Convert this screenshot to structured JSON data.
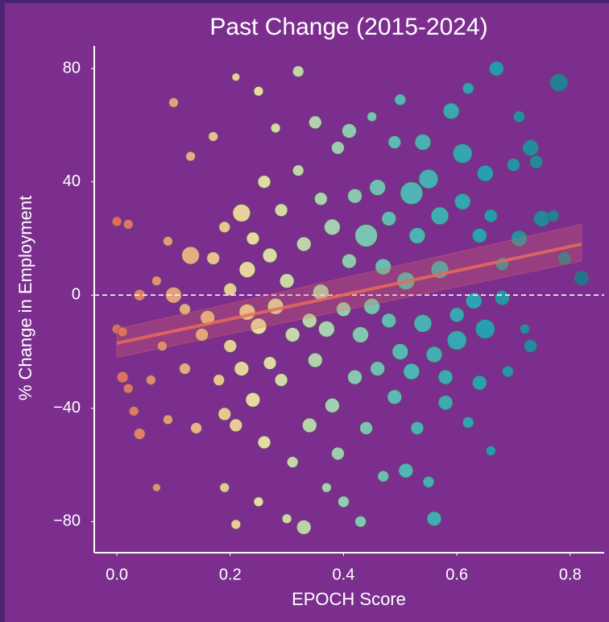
{
  "chart_data": {
    "type": "scatter",
    "title": "Past Change (2015-2024)",
    "x_label": "EPOCH Score",
    "y_label": "% Change in Employment",
    "xlim": [
      -0.04,
      0.86
    ],
    "ylim": [
      -91,
      88
    ],
    "xticks": [
      {
        "value": 0,
        "label": "0.0"
      },
      0.2,
      0.4,
      0.6,
      0.8
    ],
    "yticks": [
      {
        "value": -80,
        "label": "−80"
      },
      {
        "value": -40,
        "label": "−40"
      },
      0,
      40,
      80
    ],
    "hline": 0,
    "colormap": [
      {
        "value": 0,
        "color": "#e9705c"
      },
      {
        "value": 0.15,
        "color": "#f0c58a"
      },
      {
        "value": 0.25,
        "color": "#f1eaa6"
      },
      {
        "value": 0.38,
        "color": "#a8dcb5"
      },
      {
        "value": 0.5,
        "color": "#52c3b8"
      },
      {
        "value": 0.65,
        "color": "#1fa9b5"
      },
      {
        "value": 0.82,
        "color": "#1a7c8c"
      }
    ],
    "x": [
      0.0,
      0.02,
      0.0,
      0.01,
      0.01,
      0.02,
      0.03,
      0.04,
      0.04,
      0.06,
      0.07,
      0.08,
      0.09,
      0.09,
      0.1,
      0.1,
      0.07,
      0.12,
      0.12,
      0.13,
      0.13,
      0.14,
      0.15,
      0.16,
      0.17,
      0.17,
      0.18,
      0.19,
      0.19,
      0.19,
      0.2,
      0.2,
      0.21,
      0.21,
      0.21,
      0.22,
      0.22,
      0.23,
      0.23,
      0.24,
      0.24,
      0.25,
      0.25,
      0.25,
      0.26,
      0.26,
      0.27,
      0.27,
      0.28,
      0.28,
      0.29,
      0.29,
      0.3,
      0.3,
      0.31,
      0.31,
      0.32,
      0.32,
      0.33,
      0.33,
      0.34,
      0.34,
      0.35,
      0.35,
      0.36,
      0.36,
      0.37,
      0.37,
      0.38,
      0.38,
      0.39,
      0.39,
      0.4,
      0.4,
      0.41,
      0.41,
      0.42,
      0.42,
      0.43,
      0.43,
      0.44,
      0.44,
      0.45,
      0.45,
      0.46,
      0.46,
      0.47,
      0.47,
      0.48,
      0.48,
      0.49,
      0.49,
      0.5,
      0.5,
      0.51,
      0.51,
      0.52,
      0.52,
      0.53,
      0.53,
      0.54,
      0.54,
      0.55,
      0.55,
      0.56,
      0.56,
      0.57,
      0.57,
      0.58,
      0.58,
      0.59,
      0.6,
      0.6,
      0.61,
      0.61,
      0.62,
      0.62,
      0.63,
      0.64,
      0.64,
      0.65,
      0.65,
      0.66,
      0.66,
      0.67,
      0.68,
      0.68,
      0.69,
      0.7,
      0.71,
      0.71,
      0.72,
      0.73,
      0.73,
      0.74,
      0.75,
      0.77,
      0.78,
      0.79,
      0.82
    ],
    "y": [
      26,
      25,
      -12,
      -13,
      -29,
      -33,
      -41,
      -49,
      0,
      -30,
      5,
      -18,
      19,
      -44,
      0,
      68,
      -68,
      -5,
      -26,
      14,
      49,
      -47,
      -14,
      -8,
      13,
      56,
      -30,
      -42,
      24,
      -68,
      2,
      -18,
      -46,
      -81,
      77,
      29,
      -26,
      9,
      -6,
      -37,
      20,
      -11,
      -73,
      72,
      40,
      -52,
      14,
      -24,
      -4,
      59,
      30,
      -30,
      -79,
      5,
      -59,
      -14,
      44,
      79,
      -82,
      18,
      -46,
      -9,
      -23,
      61,
      34,
      1,
      -12,
      -68,
      24,
      -39,
      -56,
      52,
      -5,
      -73,
      12,
      58,
      -29,
      35,
      -80,
      -14,
      21,
      -47,
      -4,
      63,
      38,
      -26,
      10,
      -64,
      -9,
      27,
      -36,
      54,
      -20,
      69,
      5,
      -62,
      36,
      -27,
      21,
      -47,
      -10,
      54,
      41,
      -66,
      -79,
      -21,
      9,
      28,
      -38,
      -29,
      65,
      -7,
      -16,
      50,
      33,
      73,
      -45,
      -2,
      21,
      -31,
      43,
      -12,
      -55,
      28,
      80,
      -1,
      11,
      -27,
      46,
      63,
      20,
      -12,
      52,
      -18,
      47,
      27,
      28,
      75,
      13,
      6
    ],
    "sizes": [
      6,
      6,
      6,
      6,
      7,
      6,
      6,
      7,
      7,
      6,
      6,
      6,
      6,
      6,
      10,
      6,
      5,
      7,
      7,
      11,
      6,
      7,
      8,
      9,
      8,
      6,
      7,
      8,
      7,
      6,
      8,
      8,
      8,
      6,
      5,
      11,
      9,
      10,
      10,
      9,
      8,
      10,
      6,
      6,
      8,
      8,
      9,
      8,
      10,
      6,
      8,
      8,
      6,
      9,
      7,
      9,
      7,
      7,
      9,
      9,
      9,
      9,
      9,
      8,
      8,
      10,
      10,
      6,
      10,
      9,
      8,
      8,
      9,
      7,
      9,
      9,
      9,
      9,
      7,
      10,
      14,
      8,
      10,
      6,
      10,
      9,
      10,
      7,
      9,
      9,
      9,
      8,
      10,
      7,
      11,
      9,
      14,
      10,
      10,
      8,
      11,
      10,
      12,
      7,
      9,
      10,
      11,
      11,
      9,
      9,
      10,
      9,
      12,
      12,
      10,
      7,
      7,
      10,
      9,
      9,
      10,
      12,
      6,
      8,
      9,
      9,
      8,
      7,
      8,
      7,
      10,
      6,
      10,
      8,
      8,
      10,
      7,
      11,
      8,
      9
    ],
    "trend": {
      "color": "#e86a5a",
      "x": [
        0,
        0.82
      ],
      "y": [
        -17,
        18
      ],
      "lower": [
        -22,
        12
      ],
      "upper": [
        -12,
        25
      ]
    }
  }
}
